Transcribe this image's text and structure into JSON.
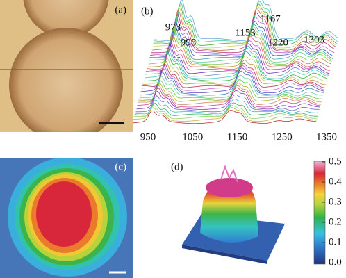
{
  "panels": {
    "a": {
      "label": "(a)"
    },
    "b": {
      "label": "(b)",
      "peaks": [
        973,
        998,
        1153,
        1167,
        1220,
        1303
      ],
      "xticks": [
        950,
        1050,
        1150,
        1250,
        1350
      ]
    },
    "c": {
      "label": "(c)"
    },
    "d": {
      "label": "(d)",
      "colorbar_ticks": [
        0.5,
        0.4,
        0.3,
        0.2,
        0.1,
        {
          "value": 0,
          "label": "0.0"
        }
      ]
    }
  }
}
